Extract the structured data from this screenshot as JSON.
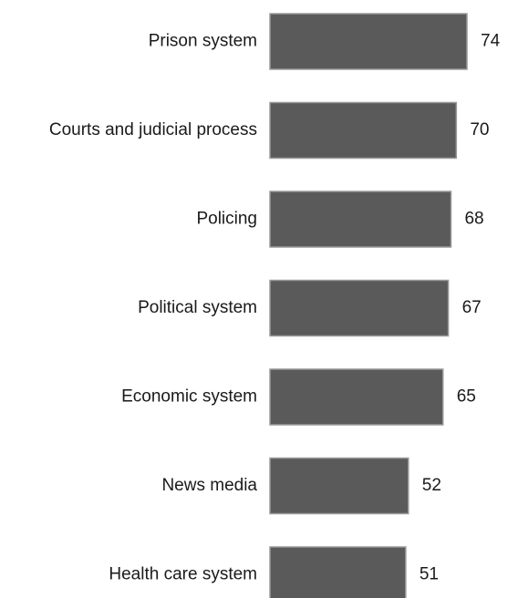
{
  "chart_data": {
    "type": "bar",
    "orientation": "horizontal",
    "categories": [
      "Prison system",
      "Courts and judicial process",
      "Policing",
      "Political system",
      "Economic system",
      "News media",
      "Health care system"
    ],
    "values": [
      74,
      70,
      68,
      67,
      65,
      52,
      51
    ],
    "value_labels": [
      "74",
      "70",
      "68",
      "67",
      "65",
      "52",
      "51"
    ],
    "title": "",
    "xlabel": "",
    "ylabel": "",
    "xlim": [
      0,
      74
    ],
    "grid": false,
    "legend": "none",
    "bar_color": "#5a5a5a",
    "bar_border_color": "#9a9a9a"
  }
}
